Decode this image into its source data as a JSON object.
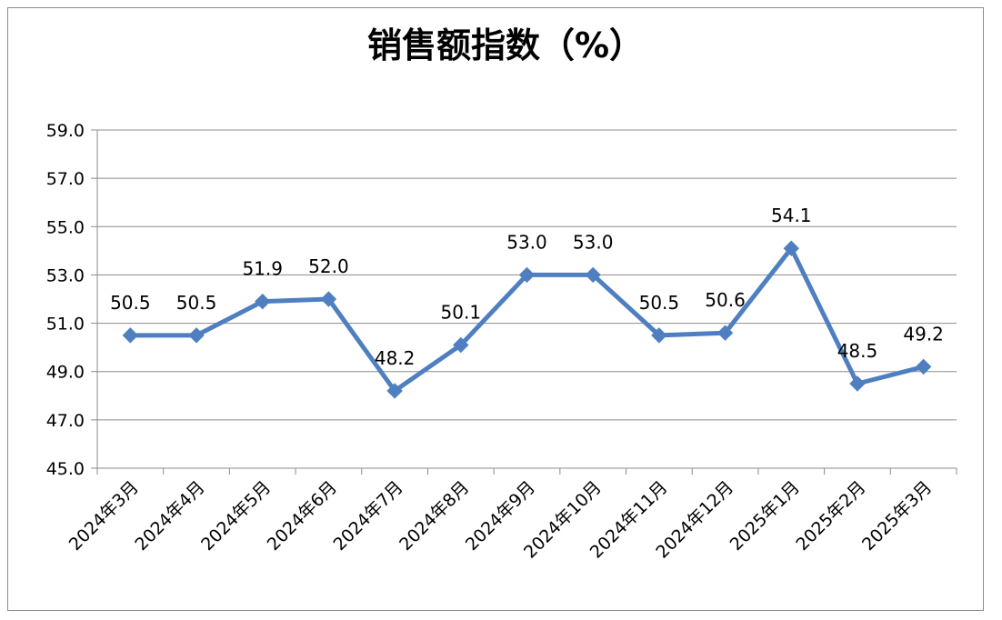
{
  "chart_data": {
    "type": "line",
    "title": "销售额指数（%）",
    "xlabel": "",
    "ylabel": "",
    "categories": [
      "2024年3月",
      "2024年4月",
      "2024年5月",
      "2024年6月",
      "2024年7月",
      "2024年8月",
      "2024年9月",
      "2024年10月",
      "2024年11月",
      "2024年12月",
      "2025年1月",
      "2025年2月",
      "2025年3月"
    ],
    "series": [
      {
        "values": [
          50.5,
          50.5,
          51.9,
          52.0,
          48.2,
          50.1,
          53.0,
          53.0,
          50.5,
          50.6,
          54.1,
          48.5,
          49.2
        ],
        "value_labels": [
          "50.5",
          "50.5",
          "51.9",
          "52.0",
          "48.2",
          "50.1",
          "53.0",
          "53.0",
          "50.5",
          "50.6",
          "54.1",
          "48.5",
          "49.2"
        ]
      }
    ],
    "ylim": [
      45.0,
      59.0
    ],
    "yticks": [
      "45.0",
      "47.0",
      "49.0",
      "51.0",
      "53.0",
      "55.0",
      "57.0",
      "59.0"
    ],
    "grid": true,
    "legend": "none",
    "colors": {
      "line": "#4f7fc0",
      "marker": "#4f7fc0",
      "grid": "#8c8c8c",
      "axis": "#8c8c8c",
      "border": "#8c8c8c"
    }
  }
}
